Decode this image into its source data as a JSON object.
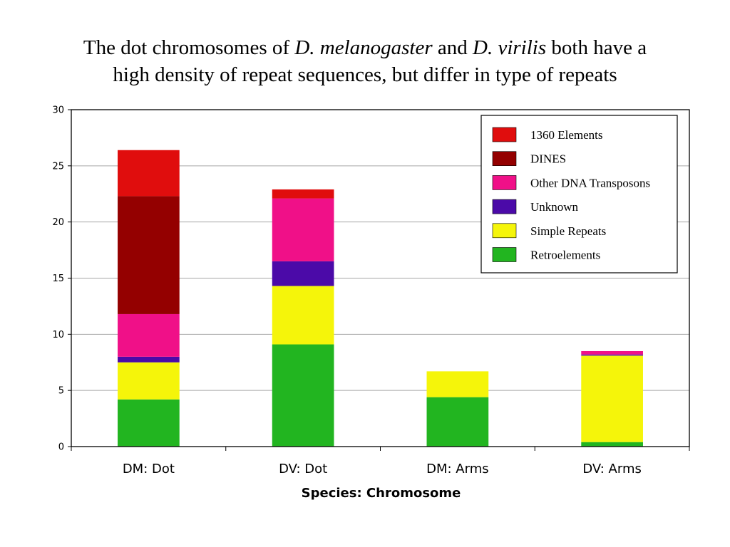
{
  "title": {
    "part1": "The dot chromosomes of ",
    "species1": "D. melanogaster",
    "part2": " and ",
    "species2": "D. virilis",
    "part3": " both have a",
    "line2": "high density of repeat sequences, but differ in type of repeats"
  },
  "chart_data": {
    "type": "bar",
    "stacked": true,
    "categories": [
      "DM: Dot",
      "DV: Dot",
      "DM: Arms",
      "DV: Arms"
    ],
    "xlabel": "Species: Chromosome",
    "ylabel": "",
    "ylim": [
      0,
      30
    ],
    "yticks": [
      0,
      5,
      10,
      15,
      20,
      25,
      30
    ],
    "grid": true,
    "legend_position": "top-right",
    "series": [
      {
        "name": "Retroelements",
        "color": "#22b520",
        "values": [
          4.2,
          9.1,
          4.4,
          0.4
        ]
      },
      {
        "name": "Simple Repeats",
        "color": "#f5f50a",
        "values": [
          3.3,
          5.2,
          2.3,
          7.7
        ]
      },
      {
        "name": "Unknown",
        "color": "#4b0aa8",
        "values": [
          0.5,
          2.2,
          0,
          0.1
        ]
      },
      {
        "name": "Other DNA Transposons",
        "color": "#f01088",
        "values": [
          3.8,
          5.6,
          0,
          0.3
        ]
      },
      {
        "name": "DINES",
        "color": "#940000",
        "values": [
          10.5,
          0,
          0,
          0
        ]
      },
      {
        "name": "1360 Elements",
        "color": "#e00d0d",
        "values": [
          4.1,
          0.8,
          0,
          0
        ]
      }
    ],
    "legend_order": [
      "1360 Elements",
      "DINES",
      "Other DNA Transposons",
      "Unknown",
      "Simple Repeats",
      "Retroelements"
    ]
  }
}
